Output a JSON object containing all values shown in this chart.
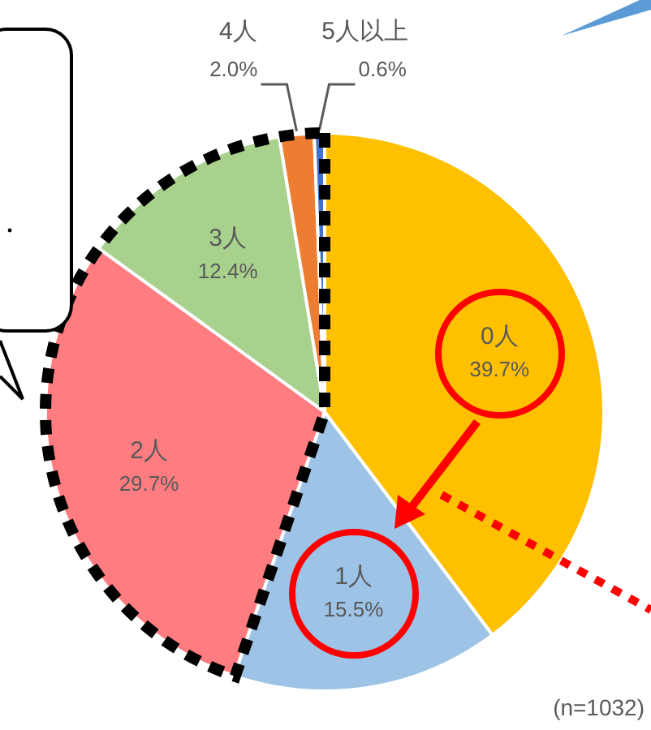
{
  "chart_data": {
    "type": "pie",
    "categories": [
      "0人",
      "1人",
      "2人",
      "3人",
      "4人",
      "5人以上"
    ],
    "values": [
      39.7,
      15.5,
      29.7,
      12.4,
      2.0,
      0.6
    ],
    "colors": [
      "#ffc000",
      "#9dc3e6",
      "#ff7c80",
      "#a9d18e",
      "#ed7d31",
      "#4472c4"
    ],
    "value_labels": [
      "39.7%",
      "15.5%",
      "29.7%",
      "12.4%",
      "2.0%",
      "0.6%"
    ],
    "annotations": [
      "(n=1032)"
    ]
  }
}
